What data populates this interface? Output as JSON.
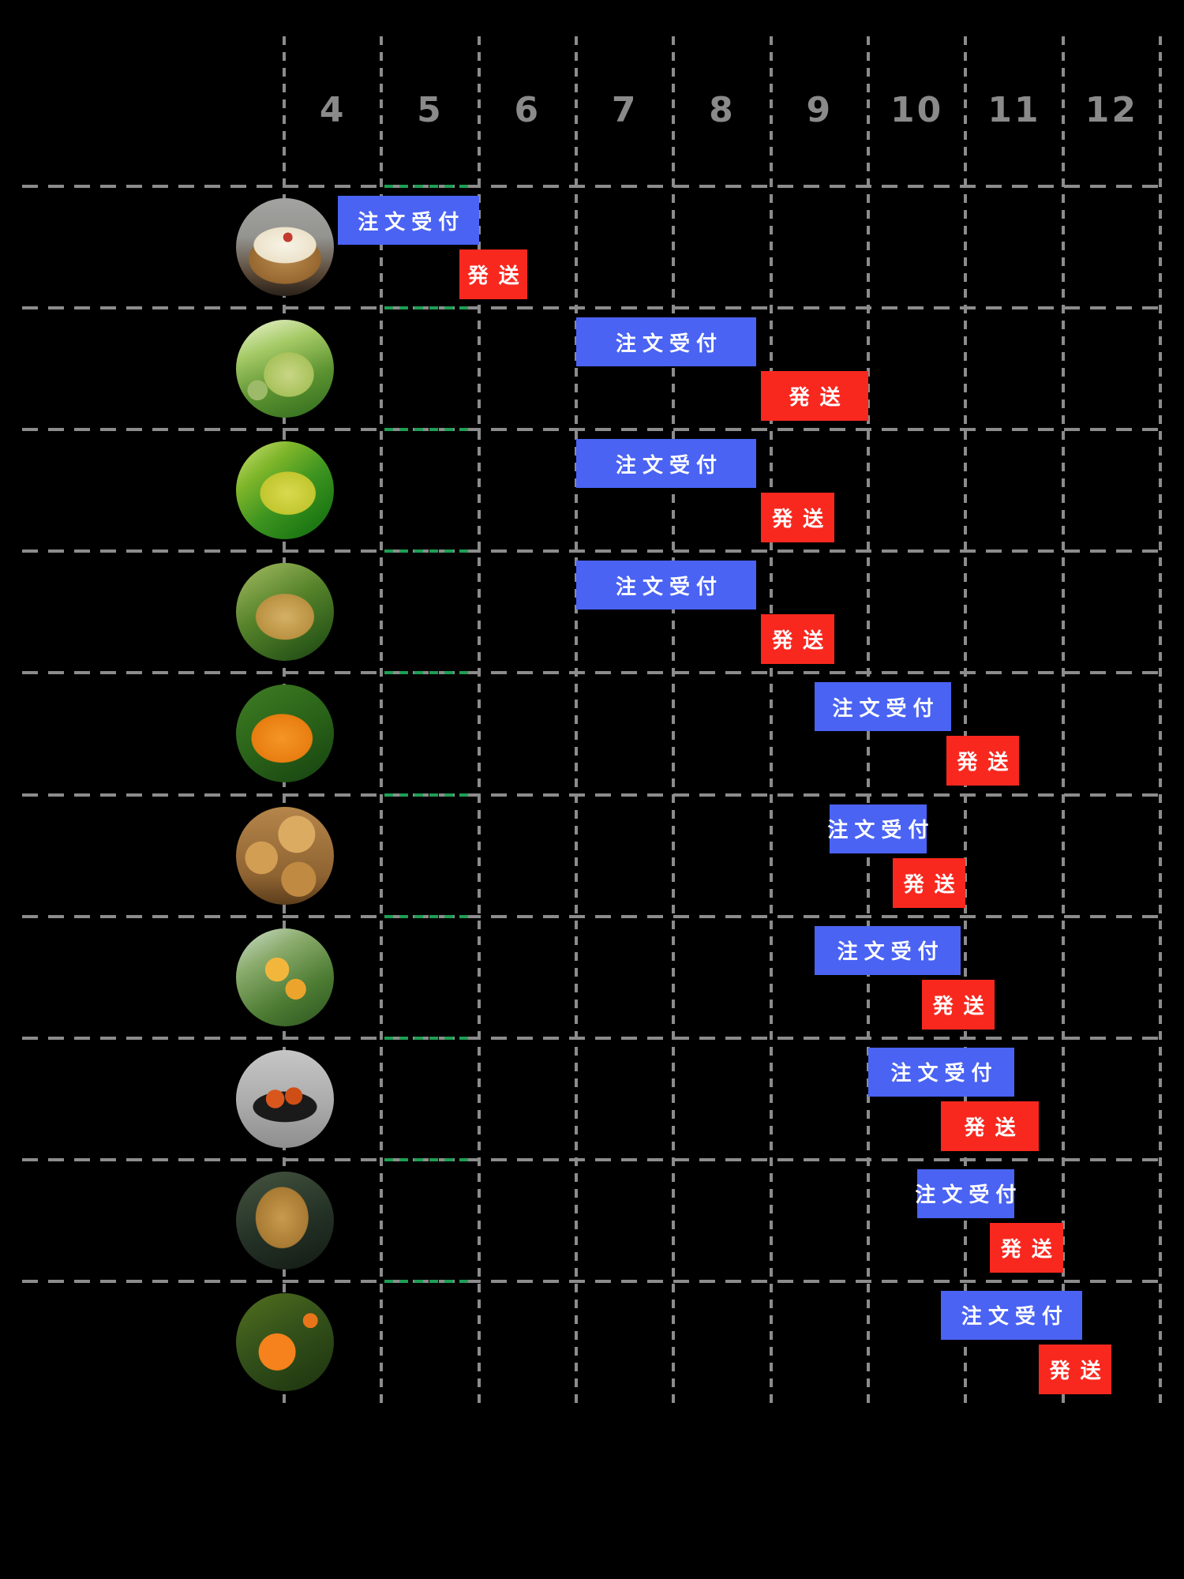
{
  "page": {
    "background": "#000000",
    "grid_color": "#8c8c8c",
    "grid_accent_color": "#1f9e54",
    "axis_label_color": "#8a8a8a"
  },
  "chart_data": {
    "type": "gantt",
    "title": "",
    "x_axis": {
      "unit": "month",
      "min": 4,
      "max": 13,
      "tick_labels": [
        "4",
        "5",
        "6",
        "7",
        "8",
        "9",
        "10",
        "11",
        "12"
      ],
      "grid": "dashed"
    },
    "legend_position": "none",
    "series_labels": {
      "order": "注文受付",
      "shipping": "発送"
    },
    "series_colors": {
      "order": "#4a63f3",
      "shipping": "#f8281f",
      "text": "#ffffff"
    },
    "rows": [
      {
        "icon": "white-pear-slices-in-bowl-photo",
        "order": {
          "start": 4.55,
          "end": 6.0
        },
        "shipping": {
          "start": 5.8,
          "end": 6.5
        }
      },
      {
        "icon": "green-pear-on-tree-photo",
        "order": {
          "start": 7.0,
          "end": 8.85
        },
        "shipping": {
          "start": 8.9,
          "end": 10.0
        }
      },
      {
        "icon": "yellow-green-pear-on-tree-photo",
        "order": {
          "start": 7.0,
          "end": 8.85
        },
        "shipping": {
          "start": 8.9,
          "end": 9.65
        }
      },
      {
        "icon": "golden-russet-pear-on-tree-photo",
        "order": {
          "start": 7.0,
          "end": 8.85
        },
        "shipping": {
          "start": 8.9,
          "end": 9.65
        }
      },
      {
        "icon": "orange-persimmon-on-tree-photo",
        "order": {
          "start": 9.45,
          "end": 10.85
        },
        "shipping": {
          "start": 10.8,
          "end": 11.55
        }
      },
      {
        "icon": "pile-of-russet-pears-photo",
        "order": {
          "start": 9.6,
          "end": 10.6
        },
        "shipping": {
          "start": 10.25,
          "end": 11.0
        }
      },
      {
        "icon": "yellow-persimmons-on-branch-photo",
        "order": {
          "start": 9.45,
          "end": 10.95
        },
        "shipping": {
          "start": 10.55,
          "end": 11.3
        }
      },
      {
        "icon": "dried-persimmons-on-plate-photo",
        "order": {
          "start": 10.0,
          "end": 11.5
        },
        "shipping": {
          "start": 10.75,
          "end": 11.75
        }
      },
      {
        "icon": "russet-pear-closeup-photo",
        "order": {
          "start": 10.5,
          "end": 11.5
        },
        "shipping": {
          "start": 11.25,
          "end": 12.0
        }
      },
      {
        "icon": "ripe-persimmon-on-tree-photo",
        "order": {
          "start": 10.75,
          "end": 12.2
        },
        "shipping": {
          "start": 11.75,
          "end": 12.5
        }
      }
    ]
  }
}
